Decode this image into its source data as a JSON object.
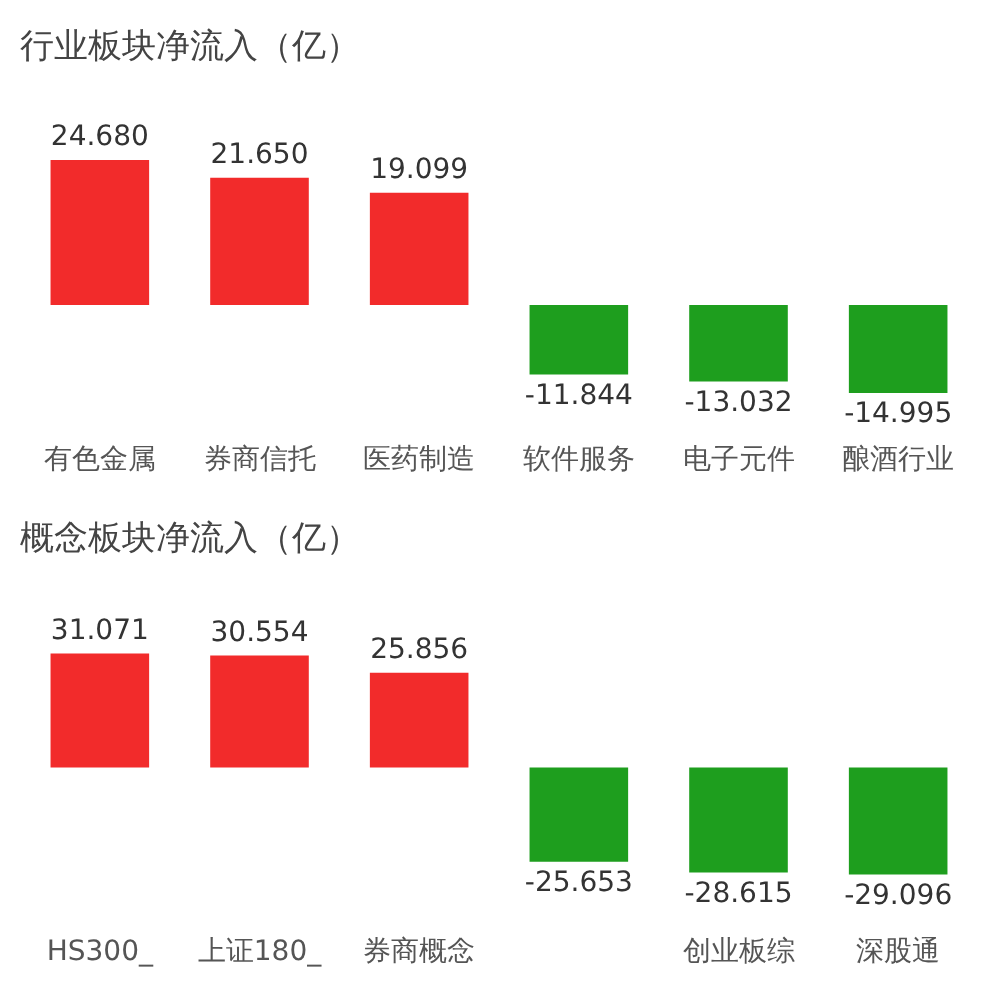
{
  "chart_data": [
    {
      "type": "bar",
      "title": "行业板块净流入（亿）",
      "categories": [
        "有色金属",
        "券商信托",
        "医药制造",
        "软件服务",
        "电子元件",
        "酿酒行业"
      ],
      "values": [
        24.68,
        21.65,
        19.099,
        -11.844,
        -13.032,
        -14.995
      ],
      "colors": [
        "#f22b2b",
        "#f22b2b",
        "#f22b2b",
        "#1e9e1e",
        "#1e9e1e",
        "#1e9e1e"
      ],
      "value_labels": [
        "24.680",
        "21.650",
        "19.099",
        "-11.844",
        "-13.032",
        "-14.995"
      ]
    },
    {
      "type": "bar",
      "title": "概念板块净流入（亿）",
      "categories": [
        "HS300_",
        "上证180_",
        "券商概念",
        null,
        "创业板综",
        "深股通"
      ],
      "values": [
        31.071,
        30.554,
        25.856,
        -25.653,
        -28.615,
        -29.096
      ],
      "colors": [
        "#f22b2b",
        "#f22b2b",
        "#f22b2b",
        "#1e9e1e",
        "#1e9e1e",
        "#1e9e1e"
      ],
      "data_labels": true
    }
  ]
}
